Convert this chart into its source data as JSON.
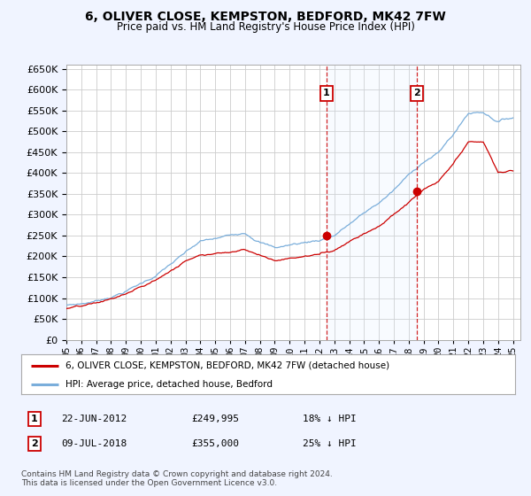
{
  "title": "6, OLIVER CLOSE, KEMPSTON, BEDFORD, MK42 7FW",
  "subtitle": "Price paid vs. HM Land Registry's House Price Index (HPI)",
  "legend_line1": "6, OLIVER CLOSE, KEMPSTON, BEDFORD, MK42 7FW (detached house)",
  "legend_line2": "HPI: Average price, detached house, Bedford",
  "annotation1_label": "1",
  "annotation1_date": "22-JUN-2012",
  "annotation1_price": "£249,995",
  "annotation1_hpi": "18% ↓ HPI",
  "annotation2_label": "2",
  "annotation2_date": "09-JUL-2018",
  "annotation2_price": "£355,000",
  "annotation2_hpi": "25% ↓ HPI",
  "footnote": "Contains HM Land Registry data © Crown copyright and database right 2024.\nThis data is licensed under the Open Government Licence v3.0.",
  "sale1_x": 2012.47,
  "sale1_y": 249995,
  "sale2_x": 2018.52,
  "sale2_y": 355000,
  "red_line_color": "#cc0000",
  "blue_line_color": "#7aaedb",
  "fill_color": "#ddeeff",
  "background_color": "#f0f4ff",
  "plot_bg_color": "#ffffff",
  "vline_color": "#cc0000",
  "ylim_min": 0,
  "ylim_max": 660000,
  "xlim_min": 1995.0,
  "xlim_max": 2025.5,
  "yticks": [
    0,
    50000,
    100000,
    150000,
    200000,
    250000,
    300000,
    350000,
    400000,
    450000,
    500000,
    550000,
    600000,
    650000
  ]
}
